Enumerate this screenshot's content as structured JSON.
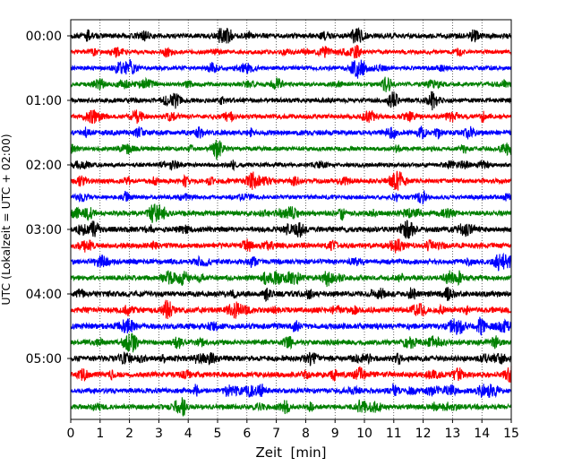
{
  "chart_data": {
    "type": "line",
    "title": "",
    "xlabel": "Zeit  [min]",
    "ylabel": "UTC (Lokalzeit = UTC + 02:00)",
    "xlim": [
      0,
      15
    ],
    "x_ticks": [
      "0",
      "1",
      "2",
      "3",
      "4",
      "5",
      "6",
      "7",
      "8",
      "9",
      "10",
      "11",
      "12",
      "13",
      "14",
      "15"
    ],
    "y_tick_labels": [
      "00:00",
      "01:00",
      "02:00",
      "03:00",
      "04:00",
      "05:00"
    ],
    "grid_x": true,
    "trace_interval_min": 15,
    "trace_count": 24,
    "trace_colors": [
      "#000000",
      "#ff0000",
      "#0000ff",
      "#008000"
    ],
    "series": [
      {
        "start": "00:00",
        "amplitude": 0.55,
        "color": "#000000"
      },
      {
        "start": "00:15",
        "amplitude": 0.45,
        "color": "#ff0000"
      },
      {
        "start": "00:30",
        "amplitude": 0.45,
        "color": "#0000ff"
      },
      {
        "start": "00:45",
        "amplitude": 0.45,
        "color": "#008000"
      },
      {
        "start": "01:00",
        "amplitude": 0.5,
        "color": "#000000"
      },
      {
        "start": "01:15",
        "amplitude": 0.5,
        "color": "#ff0000"
      },
      {
        "start": "01:30",
        "amplitude": 0.55,
        "color": "#0000ff"
      },
      {
        "start": "01:45",
        "amplitude": 0.45,
        "color": "#008000"
      },
      {
        "start": "02:00",
        "amplitude": 0.45,
        "color": "#000000"
      },
      {
        "start": "02:15",
        "amplitude": 0.5,
        "color": "#ff0000"
      },
      {
        "start": "02:30",
        "amplitude": 0.45,
        "color": "#0000ff"
      },
      {
        "start": "02:45",
        "amplitude": 0.55,
        "color": "#008000"
      },
      {
        "start": "03:00",
        "amplitude": 0.6,
        "color": "#000000"
      },
      {
        "start": "03:15",
        "amplitude": 0.55,
        "color": "#ff0000"
      },
      {
        "start": "03:30",
        "amplitude": 0.55,
        "color": "#0000ff"
      },
      {
        "start": "03:45",
        "amplitude": 0.55,
        "color": "#008000"
      },
      {
        "start": "04:00",
        "amplitude": 0.6,
        "color": "#000000"
      },
      {
        "start": "04:15",
        "amplitude": 0.6,
        "color": "#ff0000"
      },
      {
        "start": "04:30",
        "amplitude": 0.6,
        "color": "#0000ff"
      },
      {
        "start": "04:45",
        "amplitude": 0.55,
        "color": "#008000"
      },
      {
        "start": "05:00",
        "amplitude": 0.6,
        "color": "#000000"
      },
      {
        "start": "05:15",
        "amplitude": 0.6,
        "color": "#ff0000"
      },
      {
        "start": "05:30",
        "amplitude": 0.55,
        "color": "#0000ff"
      },
      {
        "start": "05:45",
        "amplitude": 0.55,
        "color": "#008000"
      }
    ]
  }
}
